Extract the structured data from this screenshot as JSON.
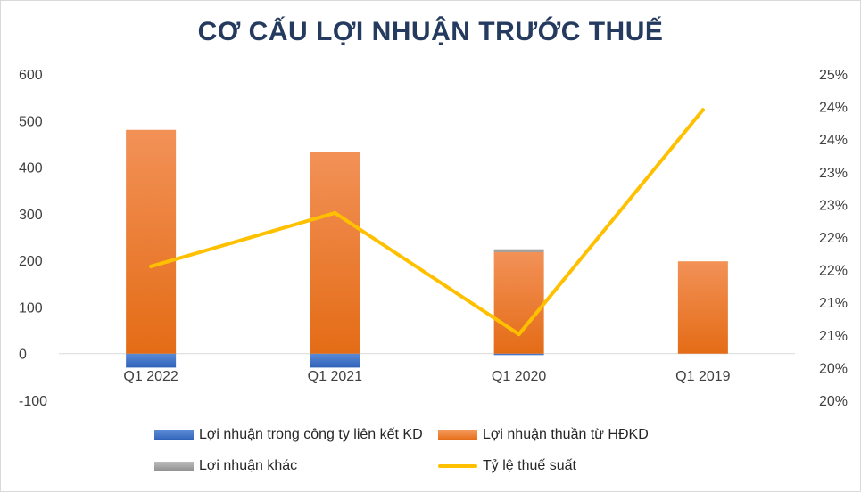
{
  "title": "CƠ CẤU LỢI NHUẬN TRƯỚC THUẾ",
  "colors": {
    "associates": "#4472c4",
    "core": "#ed7d31",
    "other": "#a5a5a5",
    "tax_rate": "#ffc000",
    "title": "#243a5e"
  },
  "chart_data": {
    "type": "bar",
    "categories": [
      "Q1 2022",
      "Q1 2021",
      "Q1 2020",
      "Q1 2019"
    ],
    "stacked": true,
    "series": [
      {
        "name": "Lợi nhuận trong công ty liên kết KD",
        "type": "bar",
        "axis": "left",
        "color": "#4472c4",
        "values": [
          -30,
          -30,
          -3,
          0
        ]
      },
      {
        "name": "Lợi nhuận thuần từ HĐKD",
        "type": "bar",
        "axis": "left",
        "color": "#ed7d31",
        "values": [
          480,
          432,
          218,
          198
        ]
      },
      {
        "name": "Lợi nhuận khác",
        "type": "bar",
        "axis": "left",
        "color": "#a5a5a5",
        "values": [
          0,
          0,
          6,
          0
        ]
      },
      {
        "name": "Tỷ lệ thuế suất",
        "type": "line",
        "axis": "right",
        "color": "#ffc000",
        "values": [
          0.2205,
          0.2287,
          0.2101,
          0.2445
        ]
      }
    ],
    "y_left": {
      "ylim": [
        -100,
        600
      ],
      "ticks": [
        "-100",
        "0",
        "100",
        "200",
        "300",
        "400",
        "500",
        "600"
      ]
    },
    "y_right": {
      "ylim": [
        0.2,
        0.25
      ],
      "ticks": [
        "20%",
        "20%",
        "21%",
        "21%",
        "22%",
        "22%",
        "23%",
        "23%",
        "24%",
        "24%",
        "25%"
      ]
    },
    "grid": false,
    "legend_position": "bottom"
  }
}
